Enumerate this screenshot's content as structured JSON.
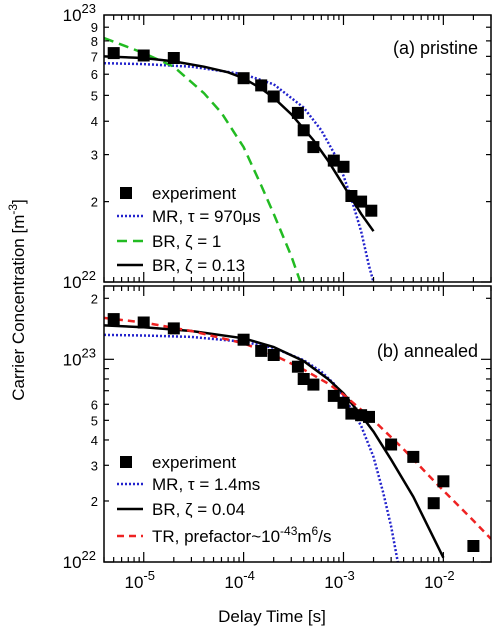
{
  "x_axis": {
    "label": "Delay Time  [s]",
    "scale": "log",
    "range": [
      4e-06,
      0.03
    ],
    "major_ticks": [
      1e-05,
      0.0001,
      0.001,
      0.01
    ],
    "tick_labels": [
      "10",
      "10",
      "10",
      "10"
    ],
    "tick_exponents": [
      "-5",
      "-4",
      "-3",
      "-2"
    ]
  },
  "y_axis_label": {
    "main": "Carrier Concentration  [m",
    "exponent": "-3",
    "close": "]"
  },
  "chart_data": [
    {
      "type": "scatter",
      "panel": "top",
      "title": "(a) pristine",
      "x_scale": "log",
      "y_scale": "log",
      "xlim": [
        4e-06,
        0.03
      ],
      "ylim": [
        1e+22,
        1e+23
      ],
      "y_major_ticks": [
        1e+22,
        1e+23
      ],
      "y_major_labels": [
        {
          "base": "10",
          "exp": "22"
        },
        {
          "base": "10",
          "exp": "23"
        }
      ],
      "y_minor_ticks": [
        2e+22,
        3e+22,
        4e+22,
        5e+22,
        6e+22,
        7e+22,
        8e+22,
        9e+22
      ],
      "y_minor_labels": [
        "2",
        "3",
        "4",
        "5",
        "6",
        "7",
        "8",
        "9"
      ],
      "legend_position": "bottom-left",
      "experiment": {
        "name": "experiment",
        "x": [
          5e-06,
          1e-05,
          2e-05,
          0.0001,
          0.00015,
          0.0002,
          0.00035,
          0.0004,
          0.0005,
          0.0008,
          0.001,
          0.0012,
          0.0015,
          0.0019
        ],
        "y": [
          7.2e+22,
          7.05e+22,
          6.9e+22,
          5.8e+22,
          5.45e+22,
          4.95e+22,
          4.3e+22,
          3.7e+22,
          3.2e+22,
          2.85e+22,
          2.7e+22,
          2.1e+22,
          2e+22,
          1.85e+22
        ]
      },
      "series": [
        {
          "name": "MR, τ = 970μs",
          "style": "dotted",
          "color": "#2222cc",
          "x": [
            4e-06,
            1e-05,
            3e-05,
            0.0001,
            0.0002,
            0.0004,
            0.0006,
            0.0008,
            0.001,
            0.0012,
            0.0015,
            0.0018,
            0.002
          ],
          "y": [
            6.6e+22,
            6.55e+22,
            6.4e+22,
            6e+22,
            5.5e+22,
            4.5e+22,
            3.7e+22,
            3.05e+22,
            2.5e+22,
            2.05e+22,
            1.55e+22,
            1.15e+22,
            1e+22
          ]
        },
        {
          "name": "BR, ζ = 1",
          "style": "dashed",
          "color": "#22bb22",
          "x": [
            4e-06,
            1e-05,
            2e-05,
            4e-05,
            6e-05,
            0.0001,
            0.00015,
            0.0002,
            0.0003,
            0.00037
          ],
          "y": [
            8.2e+22,
            7.2e+22,
            6.4e+22,
            5.1e+22,
            4.3e+22,
            3.2e+22,
            2.3e+22,
            1.8e+22,
            1.25e+22,
            1e+22
          ]
        },
        {
          "name": "BR, ζ = 0.13",
          "style": "solid",
          "color": "#000000",
          "x": [
            4e-06,
            1e-05,
            2e-05,
            4e-05,
            7e-05,
            0.0001,
            0.00015,
            0.0002,
            0.0003,
            0.0005,
            0.0007,
            0.001,
            0.0015,
            0.002
          ],
          "y": [
            7e+22,
            6.9e+22,
            6.7e+22,
            6.4e+22,
            6.1e+22,
            5.8e+22,
            5.3e+22,
            4.9e+22,
            4.25e+22,
            3.4e+22,
            2.85e+22,
            2.3e+22,
            1.8e+22,
            1.55e+22
          ]
        }
      ]
    },
    {
      "type": "scatter",
      "panel": "bottom",
      "title": "(b) annealed",
      "x_scale": "log",
      "y_scale": "log",
      "xlim": [
        4e-06,
        0.03
      ],
      "ylim": [
        1e+22,
        2.3e+23
      ],
      "y_major_ticks": [
        1e+22,
        1e+23
      ],
      "y_major_labels": [
        {
          "base": "10",
          "exp": "22"
        },
        {
          "base": "10",
          "exp": "23"
        }
      ],
      "y_minor_ticks": [
        2e+22,
        3e+22,
        4e+22,
        5e+22,
        6e+22,
        2e+23
      ],
      "y_minor_labels": [
        "2",
        "3",
        "4",
        "5",
        "6",
        "2"
      ],
      "legend_position": "bottom-left",
      "experiment": {
        "name": "experiment",
        "x": [
          5e-06,
          1e-05,
          2e-05,
          0.0001,
          0.00015,
          0.0002,
          0.00035,
          0.0004,
          0.0005,
          0.0008,
          0.001,
          0.0012,
          0.0015,
          0.0018,
          0.003,
          0.005,
          0.008,
          0.01,
          0.02
        ],
        "y": [
          1.58e+23,
          1.52e+23,
          1.42e+23,
          1.25e+23,
          1.1e+23,
          1.05e+23,
          9.2e+22,
          8e+22,
          7.5e+22,
          6.6e+22,
          6.1e+22,
          5.4e+22,
          5.3e+22,
          5.2e+22,
          3.8e+22,
          3.3e+22,
          1.95e+22,
          2.5e+22,
          1.2e+22
        ]
      },
      "series": [
        {
          "name": "MR, τ = 1.4ms",
          "style": "dotted",
          "color": "#2222cc",
          "x": [
            4e-06,
            1e-05,
            3e-05,
            0.0001,
            0.0002,
            0.0004,
            0.0006,
            0.0008,
            0.001,
            0.0015,
            0.002,
            0.0025,
            0.003,
            0.0035
          ],
          "y": [
            1.32e+23,
            1.31e+23,
            1.29e+23,
            1.22e+23,
            1.14e+23,
            9.9e+22,
            8.7e+22,
            7.6e+22,
            6.6e+22,
            4.7e+22,
            3.3e+22,
            2.2e+22,
            1.5e+22,
            1e+22
          ]
        },
        {
          "name": "BR, ζ = 0.04",
          "style": "solid",
          "color": "#000000",
          "x": [
            4e-06,
            1e-05,
            3e-05,
            0.0001,
            0.0002,
            0.0004,
            0.0007,
            0.001,
            0.0015,
            0.002,
            0.003,
            0.005,
            0.007,
            0.01
          ],
          "y": [
            1.47e+23,
            1.44e+23,
            1.38e+23,
            1.27e+23,
            1.15e+23,
            9.8e+22,
            8e+22,
            6.8e+22,
            5.3e+22,
            4.4e+22,
            3.2e+22,
            2.1e+22,
            1.5e+22,
            1.05e+22
          ]
        },
        {
          "name": "TR, prefactor~10^-43 m^6/s",
          "style": "dashed",
          "color": "#ee2222",
          "x": [
            4e-06,
            1e-05,
            3e-05,
            0.0001,
            0.0002,
            0.0004,
            0.0007,
            0.001,
            0.002,
            0.004,
            0.007,
            0.01,
            0.02,
            0.03
          ],
          "y": [
            1.6e+23,
            1.52e+23,
            1.38e+23,
            1.2e+23,
            1.05e+23,
            8.9e+22,
            7.6e+22,
            6.7e+22,
            5e+22,
            3.6e+22,
            2.7e+22,
            2.25e+22,
            1.6e+22,
            1.3e+22
          ]
        }
      ]
    }
  ],
  "legend_labels": {
    "top": {
      "experiment": "experiment",
      "mr": "MR, τ = 970μs",
      "br1": "BR, ζ = 1",
      "br2": "BR, ζ = 0.13"
    },
    "bottom": {
      "experiment": "experiment",
      "mr": "MR, τ = 1.4ms",
      "br": "BR, ζ = 0.04",
      "tr_prefix": "TR, prefactor~10",
      "tr_exp": "-43",
      "tr_suffix": "m",
      "tr_exp2": "6",
      "tr_end": "/s"
    }
  }
}
